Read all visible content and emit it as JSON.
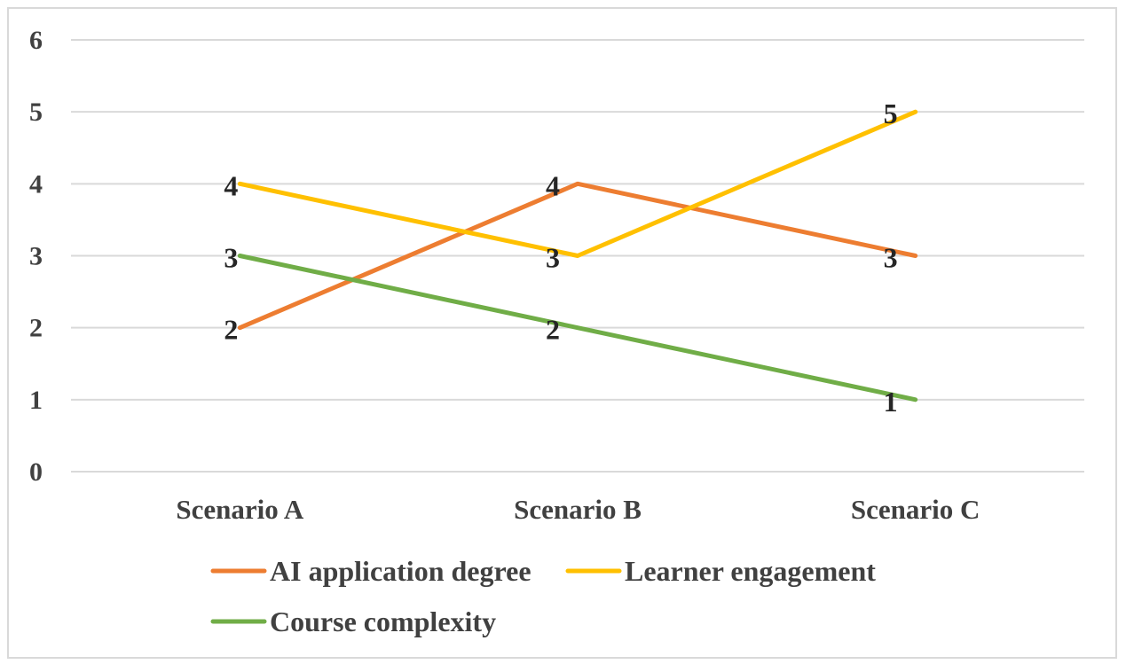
{
  "chart_data": {
    "type": "line",
    "title": "",
    "xlabel": "",
    "ylabel": "",
    "ylim": [
      0,
      6
    ],
    "y_ticks": [
      "0",
      "1",
      "2",
      "3",
      "4",
      "5",
      "6"
    ],
    "categories": [
      "Scenario A",
      "Scenario B",
      "Scenario C"
    ],
    "grid": true,
    "legend_position": "bottom",
    "series": [
      {
        "name": "AI application degree",
        "color": "#ED7D31",
        "values": [
          2,
          4,
          3
        ],
        "labels": [
          "2",
          "4",
          "3"
        ]
      },
      {
        "name": "Learner engagement",
        "color": "#FFC000",
        "values": [
          4,
          3,
          5
        ],
        "labels": [
          "4",
          "3",
          "5"
        ]
      },
      {
        "name": "Course complexity",
        "color": "#70AD47",
        "values": [
          3,
          2,
          1
        ],
        "labels": [
          "3",
          "2",
          "1"
        ]
      }
    ]
  }
}
